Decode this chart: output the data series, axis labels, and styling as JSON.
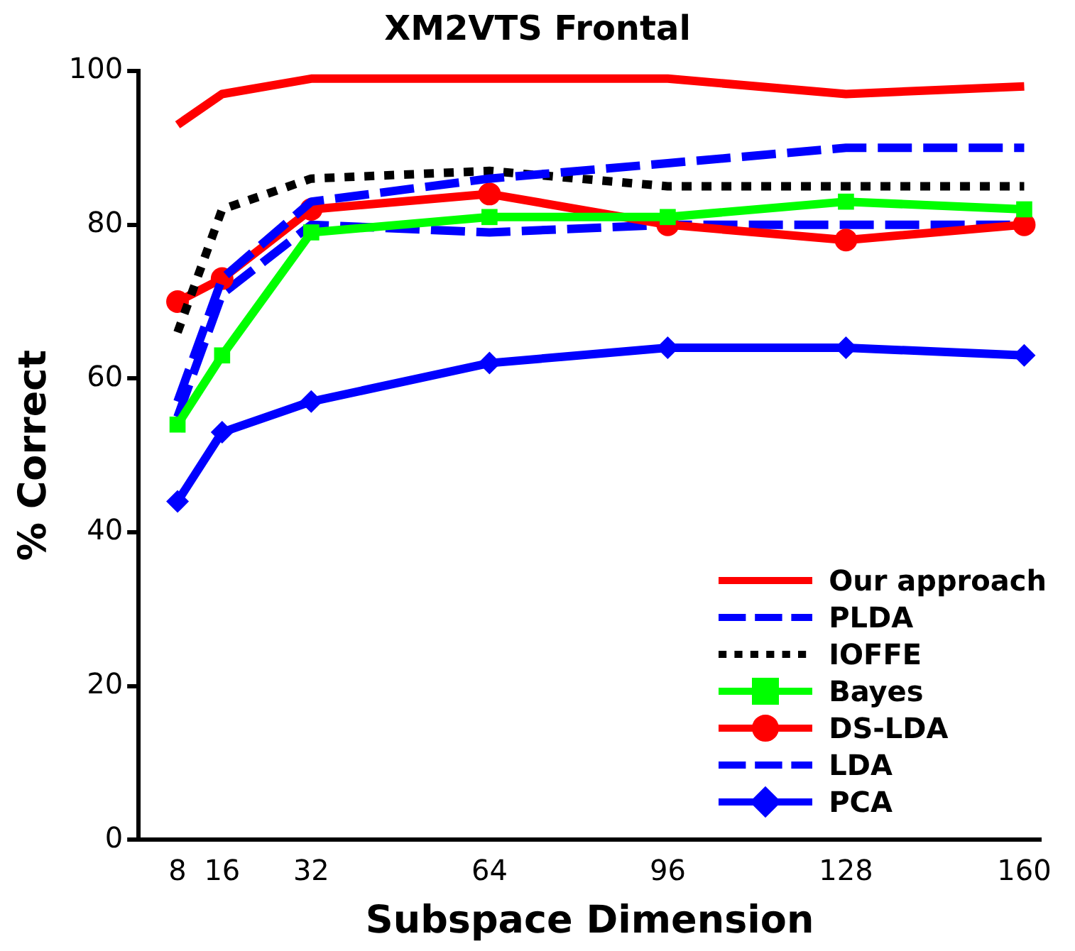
{
  "chart_data": {
    "type": "line",
    "title": "XM2VTS Frontal",
    "xlabel": "Subspace Dimension",
    "ylabel": "% Correct",
    "x": [
      8,
      16,
      32,
      64,
      96,
      128,
      160
    ],
    "xlim": [
      1,
      163
    ],
    "xticks": [
      8,
      16,
      32,
      64,
      96,
      128,
      160
    ],
    "ylim": [
      0,
      100
    ],
    "yticks": [
      0,
      20,
      40,
      60,
      80,
      100
    ],
    "grid": false,
    "legend": "bottom right",
    "series": [
      {
        "name": "Our approach",
        "color": "#ff0000",
        "line_style": "solid",
        "marker": "none",
        "values": [
          93,
          97,
          99,
          99,
          99,
          97,
          98
        ]
      },
      {
        "name": "PLDA",
        "color": "#0000ff",
        "line_style": "dashed",
        "marker": "none",
        "values": [
          57,
          73,
          83,
          86,
          88,
          90,
          90
        ]
      },
      {
        "name": "IOFFE",
        "color": "#000000",
        "line_style": "dotted",
        "marker": "none",
        "values": [
          66,
          82,
          86,
          87,
          85,
          85,
          85
        ]
      },
      {
        "name": "Bayes",
        "color": "#00ff00",
        "line_style": "solid",
        "marker": "square",
        "values": [
          54,
          63,
          79,
          81,
          81,
          83,
          82
        ]
      },
      {
        "name": "DS-LDA",
        "color": "#ff0000",
        "line_style": "solid",
        "marker": "circle",
        "values": [
          70,
          73,
          82,
          84,
          80,
          78,
          80
        ]
      },
      {
        "name": "LDA",
        "color": "#0000ff",
        "line_style": "dashed",
        "marker": "none",
        "values": [
          55,
          71,
          80,
          79,
          80,
          80,
          80
        ]
      },
      {
        "name": "PCA",
        "color": "#0000ff",
        "line_style": "solid",
        "marker": "diamond",
        "values": [
          44,
          53,
          57,
          62,
          64,
          64,
          63
        ]
      }
    ]
  }
}
